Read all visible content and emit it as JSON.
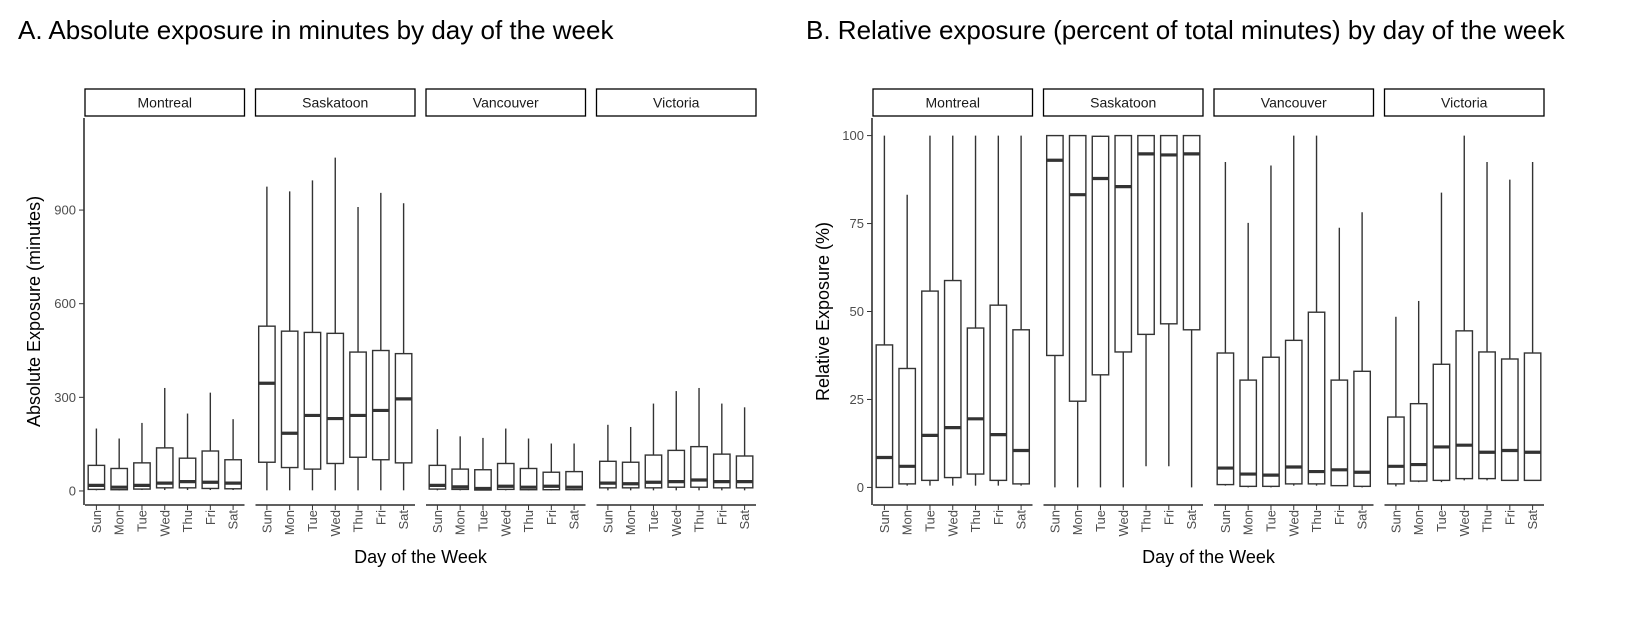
{
  "panels": [
    {
      "title": "A. Absolute exposure in minutes by day of the week",
      "chart_data": {
        "type": "boxplot",
        "facets": [
          "Montreal",
          "Saskatoon",
          "Vancouver",
          "Victoria"
        ],
        "categories": [
          "Sun",
          "Mon",
          "Tue",
          "Wed",
          "Thu",
          "Fri",
          "Sat"
        ],
        "xlabel": "Day of the Week",
        "ylabel": "Absolute Exposure (minutes)",
        "ylim": [
          -45,
          1195
        ],
        "yticks": [
          0,
          300,
          600,
          900
        ],
        "grid": false,
        "series": [
          {
            "name": "Montreal",
            "boxes": [
              {
                "min": 2,
                "q1": 5,
                "median": 18,
                "q3": 82,
                "max": 200
              },
              {
                "min": 2,
                "q1": 4,
                "median": 12,
                "q3": 72,
                "max": 168
              },
              {
                "min": 3,
                "q1": 6,
                "median": 18,
                "q3": 90,
                "max": 218
              },
              {
                "min": 3,
                "q1": 10,
                "median": 25,
                "q3": 138,
                "max": 330
              },
              {
                "min": 3,
                "q1": 10,
                "median": 30,
                "q3": 105,
                "max": 248
              },
              {
                "min": 3,
                "q1": 8,
                "median": 28,
                "q3": 128,
                "max": 315
              },
              {
                "min": 3,
                "q1": 7,
                "median": 25,
                "q3": 100,
                "max": 230
              }
            ]
          },
          {
            "name": "Saskatoon",
            "boxes": [
              {
                "min": 2,
                "q1": 92,
                "median": 345,
                "q3": 528,
                "max": 975
              },
              {
                "min": 2,
                "q1": 75,
                "median": 185,
                "q3": 512,
                "max": 960
              },
              {
                "min": 2,
                "q1": 70,
                "median": 242,
                "q3": 508,
                "max": 995
              },
              {
                "min": 2,
                "q1": 88,
                "median": 232,
                "q3": 505,
                "max": 1068
              },
              {
                "min": 2,
                "q1": 108,
                "median": 242,
                "q3": 445,
                "max": 910
              },
              {
                "min": 2,
                "q1": 100,
                "median": 258,
                "q3": 450,
                "max": 955
              },
              {
                "min": 2,
                "q1": 90,
                "median": 295,
                "q3": 440,
                "max": 922
              }
            ]
          },
          {
            "name": "Vancouver",
            "boxes": [
              {
                "min": 2,
                "q1": 6,
                "median": 18,
                "q3": 82,
                "max": 198
              },
              {
                "min": 2,
                "q1": 5,
                "median": 13,
                "q3": 70,
                "max": 175
              },
              {
                "min": 2,
                "q1": 3,
                "median": 8,
                "q3": 68,
                "max": 170
              },
              {
                "min": 2,
                "q1": 5,
                "median": 15,
                "q3": 88,
                "max": 200
              },
              {
                "min": 2,
                "q1": 4,
                "median": 12,
                "q3": 72,
                "max": 168
              },
              {
                "min": 2,
                "q1": 4,
                "median": 15,
                "q3": 60,
                "max": 152
              },
              {
                "min": 2,
                "q1": 4,
                "median": 12,
                "q3": 62,
                "max": 152
              }
            ]
          },
          {
            "name": "Victoria",
            "boxes": [
              {
                "min": 2,
                "q1": 10,
                "median": 25,
                "q3": 95,
                "max": 212
              },
              {
                "min": 2,
                "q1": 10,
                "median": 23,
                "q3": 92,
                "max": 205
              },
              {
                "min": 2,
                "q1": 10,
                "median": 28,
                "q3": 115,
                "max": 280
              },
              {
                "min": 2,
                "q1": 12,
                "median": 30,
                "q3": 130,
                "max": 320
              },
              {
                "min": 2,
                "q1": 12,
                "median": 35,
                "q3": 142,
                "max": 330
              },
              {
                "min": 2,
                "q1": 10,
                "median": 30,
                "q3": 118,
                "max": 280
              },
              {
                "min": 2,
                "q1": 10,
                "median": 30,
                "q3": 112,
                "max": 268
              }
            ]
          }
        ]
      }
    },
    {
      "title": "B. Relative exposure (percent of total minutes) by day of the week",
      "chart_data": {
        "type": "boxplot",
        "facets": [
          "Montreal",
          "Saskatoon",
          "Vancouver",
          "Victoria"
        ],
        "categories": [
          "Sun",
          "Mon",
          "Tue",
          "Wed",
          "Thu",
          "Fri",
          "Sat"
        ],
        "xlabel": "Day of the Week",
        "ylabel": "Relative Exposure (%)",
        "ylim": [
          -5,
          105
        ],
        "yticks": [
          0,
          25,
          50,
          75,
          100
        ],
        "grid": false,
        "series": [
          {
            "name": "Montreal",
            "boxes": [
              {
                "min": 0,
                "q1": 0,
                "median": 8.5,
                "q3": 40.5,
                "max": 100
              },
              {
                "min": 0.5,
                "q1": 1,
                "median": 6,
                "q3": 33.8,
                "max": 83.2
              },
              {
                "min": 0.5,
                "q1": 2,
                "median": 14.8,
                "q3": 55.8,
                "max": 100
              },
              {
                "min": 0.5,
                "q1": 2.8,
                "median": 17,
                "q3": 58.8,
                "max": 100
              },
              {
                "min": 0.5,
                "q1": 3.8,
                "median": 19.5,
                "q3": 45.3,
                "max": 100
              },
              {
                "min": 0.5,
                "q1": 2,
                "median": 15,
                "q3": 51.8,
                "max": 100
              },
              {
                "min": 0.5,
                "q1": 1,
                "median": 10.5,
                "q3": 44.8,
                "max": 100
              }
            ]
          },
          {
            "name": "Saskatoon",
            "boxes": [
              {
                "min": 0,
                "q1": 37.5,
                "median": 93,
                "q3": 100,
                "max": 100
              },
              {
                "min": 0,
                "q1": 24.5,
                "median": 83.2,
                "q3": 100,
                "max": 100
              },
              {
                "min": 0,
                "q1": 32,
                "median": 87.8,
                "q3": 99.8,
                "max": 100
              },
              {
                "min": 0,
                "q1": 38.5,
                "median": 85.5,
                "q3": 100,
                "max": 100
              },
              {
                "min": 6,
                "q1": 43.5,
                "median": 94.8,
                "q3": 100,
                "max": 100
              },
              {
                "min": 6,
                "q1": 46.5,
                "median": 94.5,
                "q3": 100,
                "max": 100
              },
              {
                "min": 0,
                "q1": 44.8,
                "median": 94.8,
                "q3": 100,
                "max": 100
              }
            ]
          },
          {
            "name": "Vancouver",
            "boxes": [
              {
                "min": 0.5,
                "q1": 0.8,
                "median": 5.5,
                "q3": 38.2,
                "max": 92.5
              },
              {
                "min": 0,
                "q1": 0.3,
                "median": 3.8,
                "q3": 30.5,
                "max": 75.2
              },
              {
                "min": 0,
                "q1": 0.3,
                "median": 3.5,
                "q3": 37,
                "max": 91.5
              },
              {
                "min": 0.5,
                "q1": 1,
                "median": 5.8,
                "q3": 41.8,
                "max": 100
              },
              {
                "min": 0.5,
                "q1": 1,
                "median": 4.5,
                "q3": 49.8,
                "max": 100
              },
              {
                "min": 0.5,
                "q1": 0.5,
                "median": 5,
                "q3": 30.5,
                "max": 73.8
              },
              {
                "min": 0,
                "q1": 0.3,
                "median": 4.3,
                "q3": 33,
                "max": 78.2
              }
            ]
          },
          {
            "name": "Victoria",
            "boxes": [
              {
                "min": 0.3,
                "q1": 1,
                "median": 6,
                "q3": 20,
                "max": 48.5
              },
              {
                "min": 1.5,
                "q1": 1.8,
                "median": 6.5,
                "q3": 23.8,
                "max": 53
              },
              {
                "min": 1.5,
                "q1": 2,
                "median": 11.5,
                "q3": 35,
                "max": 83.8
              },
              {
                "min": 2,
                "q1": 2.5,
                "median": 12,
                "q3": 44.5,
                "max": 100
              },
              {
                "min": 2,
                "q1": 2.5,
                "median": 10,
                "q3": 38.5,
                "max": 92.5
              },
              {
                "min": 2,
                "q1": 2,
                "median": 10.5,
                "q3": 36.5,
                "max": 87.5
              },
              {
                "min": 2,
                "q1": 2,
                "median": 10,
                "q3": 38.2,
                "max": 92.5
              }
            ]
          }
        ]
      }
    }
  ]
}
